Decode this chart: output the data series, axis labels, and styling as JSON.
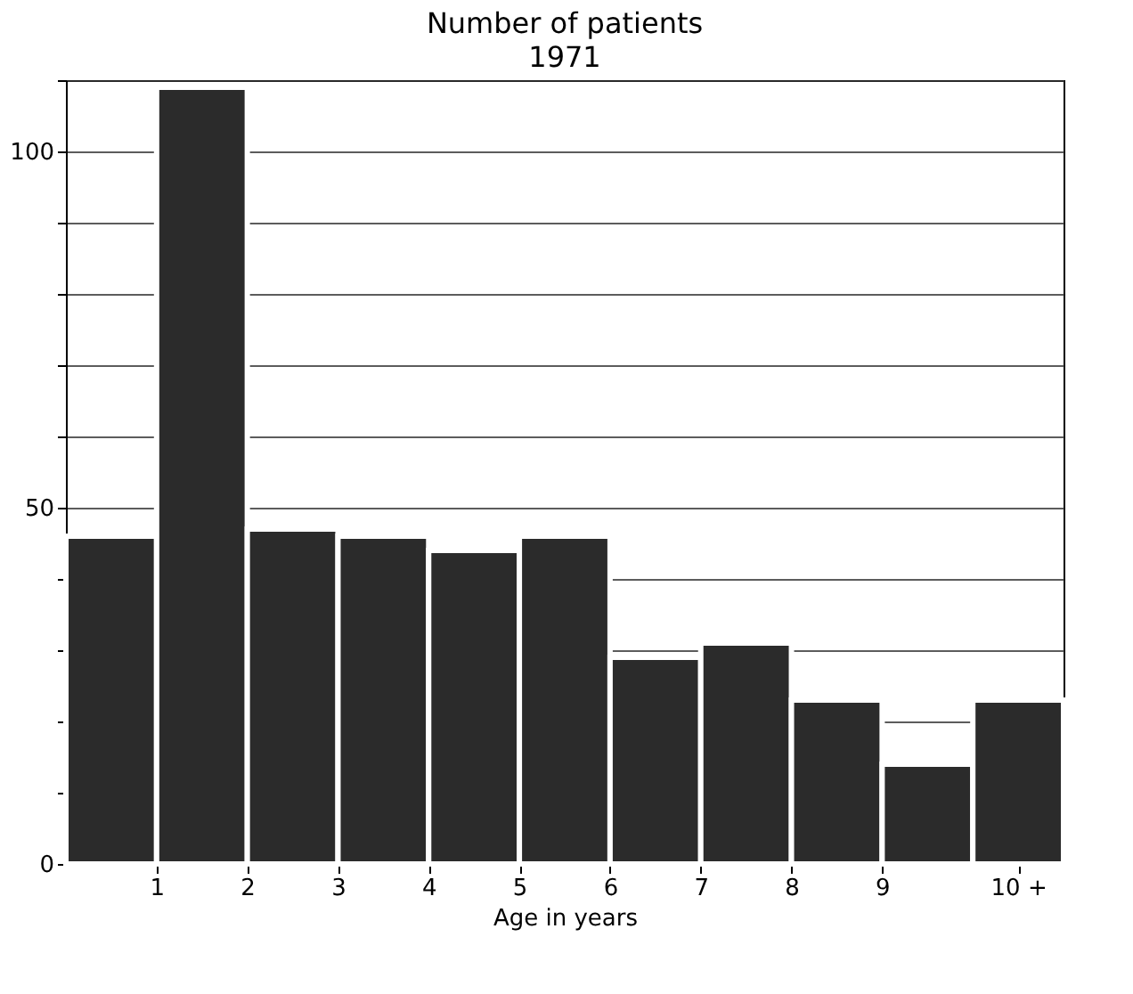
{
  "chart_data": {
    "type": "histogram",
    "title": "Number of patients",
    "subtitle": "1971",
    "xlabel": "Age in years",
    "bins": [
      0,
      1,
      2,
      3,
      4,
      5,
      6,
      7,
      8,
      9,
      10,
      11
    ],
    "values": [
      46,
      109,
      47,
      46,
      44,
      46,
      29,
      31,
      23,
      14,
      23
    ],
    "color": "#2b2b2b",
    "xlim": [
      0,
      11
    ],
    "xticks": [
      1,
      2,
      3,
      4,
      5,
      6,
      7,
      8,
      9,
      {
        "value": 10.5,
        "label": "10 +"
      }
    ],
    "ylim": [
      0,
      110
    ],
    "yticks": [
      0,
      {
        "value": 10,
        "label": null
      },
      {
        "value": 20,
        "label": null
      },
      {
        "value": 30,
        "label": null
      },
      {
        "value": 40,
        "label": null
      },
      50,
      {
        "value": 60,
        "label": null
      },
      {
        "value": 70,
        "label": null
      },
      {
        "value": 80,
        "label": null
      },
      {
        "value": 90,
        "label": null
      },
      100,
      {
        "value": 110,
        "label": null
      }
    ],
    "grid": "y"
  }
}
